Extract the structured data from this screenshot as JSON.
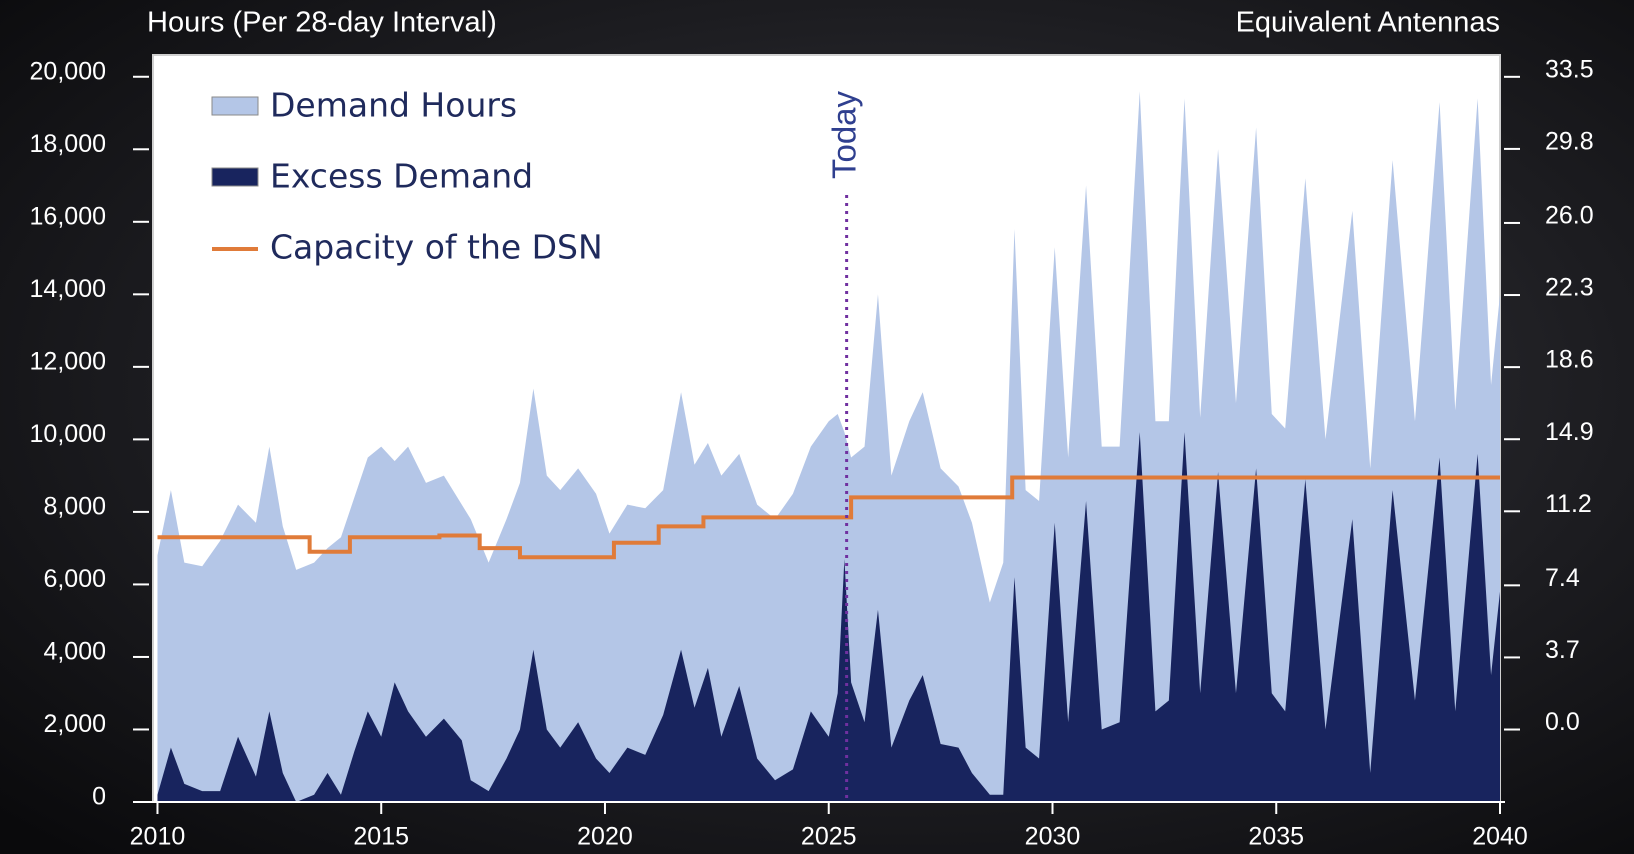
{
  "chart_data": {
    "type": "area",
    "y_axis_label": "Hours (Per 28-day Interval)",
    "y2_axis_label": "Equivalent Antennas",
    "xlim": [
      2009.9,
      2040
    ],
    "xticks": [
      2010,
      2015,
      2020,
      2025,
      2030,
      2035,
      2040
    ],
    "ylim": [
      0,
      20600
    ],
    "yticks": [
      0,
      {
        "value": 2000,
        "label": "2,000"
      },
      {
        "value": 4000,
        "label": "4,000"
      },
      {
        "value": 6000,
        "label": "6,000"
      },
      {
        "value": 8000,
        "label": "8,000"
      },
      {
        "value": 10000,
        "label": "10,000"
      },
      {
        "value": 12000,
        "label": "12,000"
      },
      {
        "value": 14000,
        "label": "14,000"
      },
      {
        "value": 16000,
        "label": "16,000"
      },
      {
        "value": 18000,
        "label": "18,000"
      },
      {
        "value": 20000,
        "label": "20,000"
      }
    ],
    "y2lim": [
      -3.72,
      34.62
    ],
    "y2ticks": [
      {
        "value": 0,
        "label": "0.0"
      },
      3.7,
      7.4,
      11.2,
      14.9,
      18.6,
      22.3,
      {
        "value": 26,
        "label": "26.0"
      },
      29.8,
      33.5
    ],
    "legend": "upper left",
    "annotation": {
      "text": "Today",
      "x": 2025.4,
      "color": "#7030a0"
    },
    "series": [
      {
        "name": "Demand Hours",
        "kind": "area",
        "color": "#b4c6e7",
        "x": [
          2010.0,
          2010.3,
          2010.6,
          2011.0,
          2011.4,
          2011.8,
          2012.2,
          2012.5,
          2012.8,
          2013.1,
          2013.5,
          2013.8,
          2014.1,
          2014.4,
          2014.7,
          2015.0,
          2015.3,
          2015.6,
          2016.0,
          2016.4,
          2016.8,
          2017.0,
          2017.4,
          2017.8,
          2018.1,
          2018.4,
          2018.7,
          2019.0,
          2019.4,
          2019.8,
          2020.1,
          2020.5,
          2020.9,
          2021.3,
          2021.7,
          2022.0,
          2022.3,
          2022.6,
          2023.0,
          2023.4,
          2023.8,
          2024.2,
          2024.6,
          2025.0,
          2025.2,
          2025.35,
          2025.5,
          2025.8,
          2026.1,
          2026.4,
          2026.8,
          2027.1,
          2027.5,
          2027.9,
          2028.2,
          2028.6,
          2028.9,
          2029.15,
          2029.4,
          2029.7,
          2030.05,
          2030.35,
          2030.75,
          2031.1,
          2031.5,
          2031.95,
          2032.3,
          2032.6,
          2032.95,
          2033.3,
          2033.7,
          2034.1,
          2034.55,
          2034.9,
          2035.2,
          2035.65,
          2036.1,
          2036.7,
          2037.1,
          2037.6,
          2038.1,
          2038.65,
          2039.0,
          2039.5,
          2039.8,
          2040.0
        ],
        "values": [
          6800,
          8600,
          6600,
          6500,
          7200,
          8200,
          7700,
          9800,
          7600,
          6400,
          6600,
          7000,
          7300,
          8400,
          9500,
          9800,
          9400,
          9800,
          8800,
          9000,
          8200,
          7800,
          6600,
          7800,
          8800,
          11400,
          9000,
          8600,
          9200,
          8500,
          7400,
          8200,
          8100,
          8600,
          11300,
          9300,
          9900,
          9000,
          9600,
          8200,
          7800,
          8500,
          9800,
          10500,
          10700,
          10200,
          9500,
          9800,
          14000,
          9000,
          10500,
          11300,
          9200,
          8700,
          7700,
          5500,
          6600,
          15800,
          8600,
          8300,
          15300,
          9500,
          17000,
          9800,
          9800,
          19600,
          10500,
          10500,
          19400,
          10600,
          18000,
          11000,
          18600,
          10700,
          10300,
          17200,
          10000,
          16300,
          9200,
          17700,
          10500,
          19300,
          10800,
          19400,
          11500,
          14000
        ]
      },
      {
        "name": "Excess Demand",
        "kind": "area",
        "color": "#18245e",
        "x": [
          2010.0,
          2010.3,
          2010.6,
          2011.0,
          2011.4,
          2011.8,
          2012.2,
          2012.5,
          2012.8,
          2013.1,
          2013.5,
          2013.8,
          2014.1,
          2014.4,
          2014.7,
          2015.0,
          2015.3,
          2015.6,
          2016.0,
          2016.4,
          2016.8,
          2017.0,
          2017.4,
          2017.8,
          2018.1,
          2018.4,
          2018.7,
          2019.0,
          2019.4,
          2019.8,
          2020.1,
          2020.5,
          2020.9,
          2021.3,
          2021.7,
          2022.0,
          2022.3,
          2022.6,
          2023.0,
          2023.4,
          2023.8,
          2024.2,
          2024.6,
          2025.0,
          2025.2,
          2025.35,
          2025.5,
          2025.8,
          2026.1,
          2026.4,
          2026.8,
          2027.1,
          2027.5,
          2027.9,
          2028.2,
          2028.6,
          2028.9,
          2029.15,
          2029.4,
          2029.7,
          2030.05,
          2030.35,
          2030.75,
          2031.1,
          2031.5,
          2031.95,
          2032.3,
          2032.6,
          2032.95,
          2033.3,
          2033.7,
          2034.1,
          2034.55,
          2034.9,
          2035.2,
          2035.65,
          2036.1,
          2036.7,
          2037.1,
          2037.6,
          2038.1,
          2038.65,
          2039.0,
          2039.5,
          2039.8,
          2040.0
        ],
        "values": [
          200,
          1500,
          500,
          300,
          300,
          1800,
          700,
          2500,
          800,
          0,
          200,
          800,
          200,
          1400,
          2500,
          1800,
          3300,
          2500,
          1800,
          2300,
          1700,
          600,
          300,
          1200,
          2000,
          4200,
          2000,
          1500,
          2200,
          1200,
          800,
          1500,
          1300,
          2400,
          4200,
          2600,
          3700,
          1800,
          3200,
          1200,
          600,
          900,
          2500,
          1800,
          3000,
          6700,
          3300,
          2200,
          5300,
          1500,
          2800,
          3500,
          1600,
          1500,
          800,
          200,
          200,
          6200,
          1500,
          1200,
          7700,
          2200,
          8300,
          2000,
          2200,
          10200,
          2500,
          2800,
          10200,
          3000,
          9100,
          3000,
          9200,
          3000,
          2500,
          8900,
          2000,
          7800,
          800,
          8600,
          2800,
          9500,
          2500,
          9600,
          3500,
          5800
        ]
      },
      {
        "name": "Capacity of the DSN",
        "kind": "line",
        "color": "#e07b39",
        "x": [
          2010.0,
          2013.4,
          2013.4,
          2014.3,
          2014.3,
          2016.3,
          2016.3,
          2017.2,
          2017.2,
          2018.1,
          2018.1,
          2020.2,
          2020.2,
          2021.2,
          2021.2,
          2022.2,
          2022.2,
          2025.5,
          2025.5,
          2029.1,
          2029.1,
          2040.0
        ],
        "values": [
          7300,
          7300,
          6900,
          6900,
          7300,
          7300,
          7350,
          7350,
          7000,
          7000,
          6750,
          6750,
          7150,
          7150,
          7600,
          7600,
          7850,
          7850,
          8400,
          8400,
          8950,
          8950
        ]
      }
    ]
  }
}
